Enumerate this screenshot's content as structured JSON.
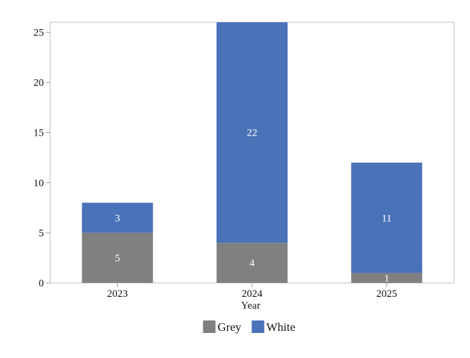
{
  "chart_data": {
    "type": "bar",
    "stacked": true,
    "title": "",
    "xlabel": "Year",
    "ylabel": "",
    "categories": [
      "2023",
      "2024",
      "2025"
    ],
    "series": [
      {
        "name": "Grey",
        "color": "#808080",
        "values": [
          5,
          4,
          1
        ]
      },
      {
        "name": "White",
        "color": "#4a72b8",
        "values": [
          3,
          22,
          11
        ]
      }
    ],
    "ylim": [
      0,
      26
    ],
    "yticks": [
      0,
      5,
      10,
      15,
      20,
      25
    ],
    "grid": false,
    "legend_position": "bottom-center",
    "data_labels": true
  }
}
